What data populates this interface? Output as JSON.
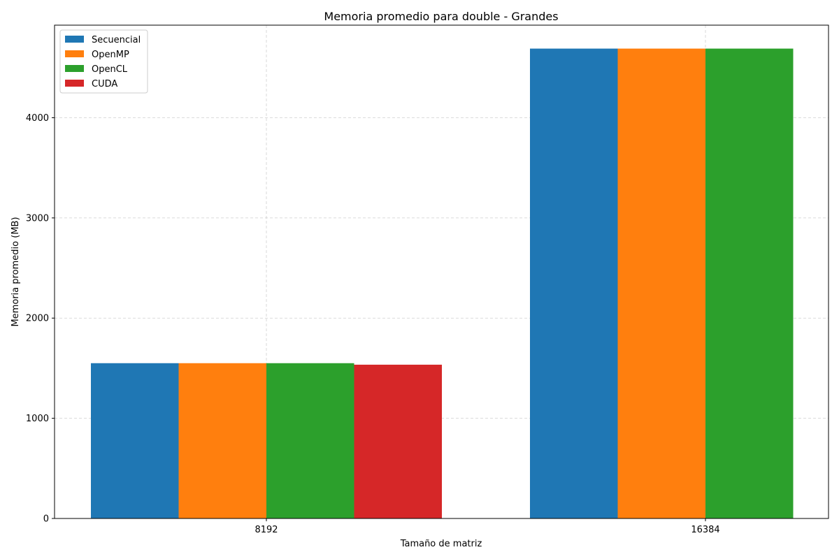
{
  "chart_data": {
    "type": "bar",
    "title": "Memoria promedio para double - Grandes",
    "xlabel": "Tamaño de matriz",
    "ylabel": "Memoria promedio (MB)",
    "categories": [
      "8192",
      "16384"
    ],
    "series": [
      {
        "name": "Secuencial",
        "color": "#1f77b4",
        "values": [
          1550,
          4690
        ]
      },
      {
        "name": "OpenMP",
        "color": "#ff7f0e",
        "values": [
          1550,
          4690
        ]
      },
      {
        "name": "OpenCL",
        "color": "#2ca02c",
        "values": [
          1550,
          4690
        ]
      },
      {
        "name": "CUDA",
        "color": "#d62728",
        "values": [
          1535,
          null
        ]
      }
    ],
    "ylim": [
      0,
      4924
    ],
    "yticks": [
      0,
      1000,
      2000,
      3000,
      4000
    ],
    "grid": true,
    "legend_position": "top-left"
  }
}
